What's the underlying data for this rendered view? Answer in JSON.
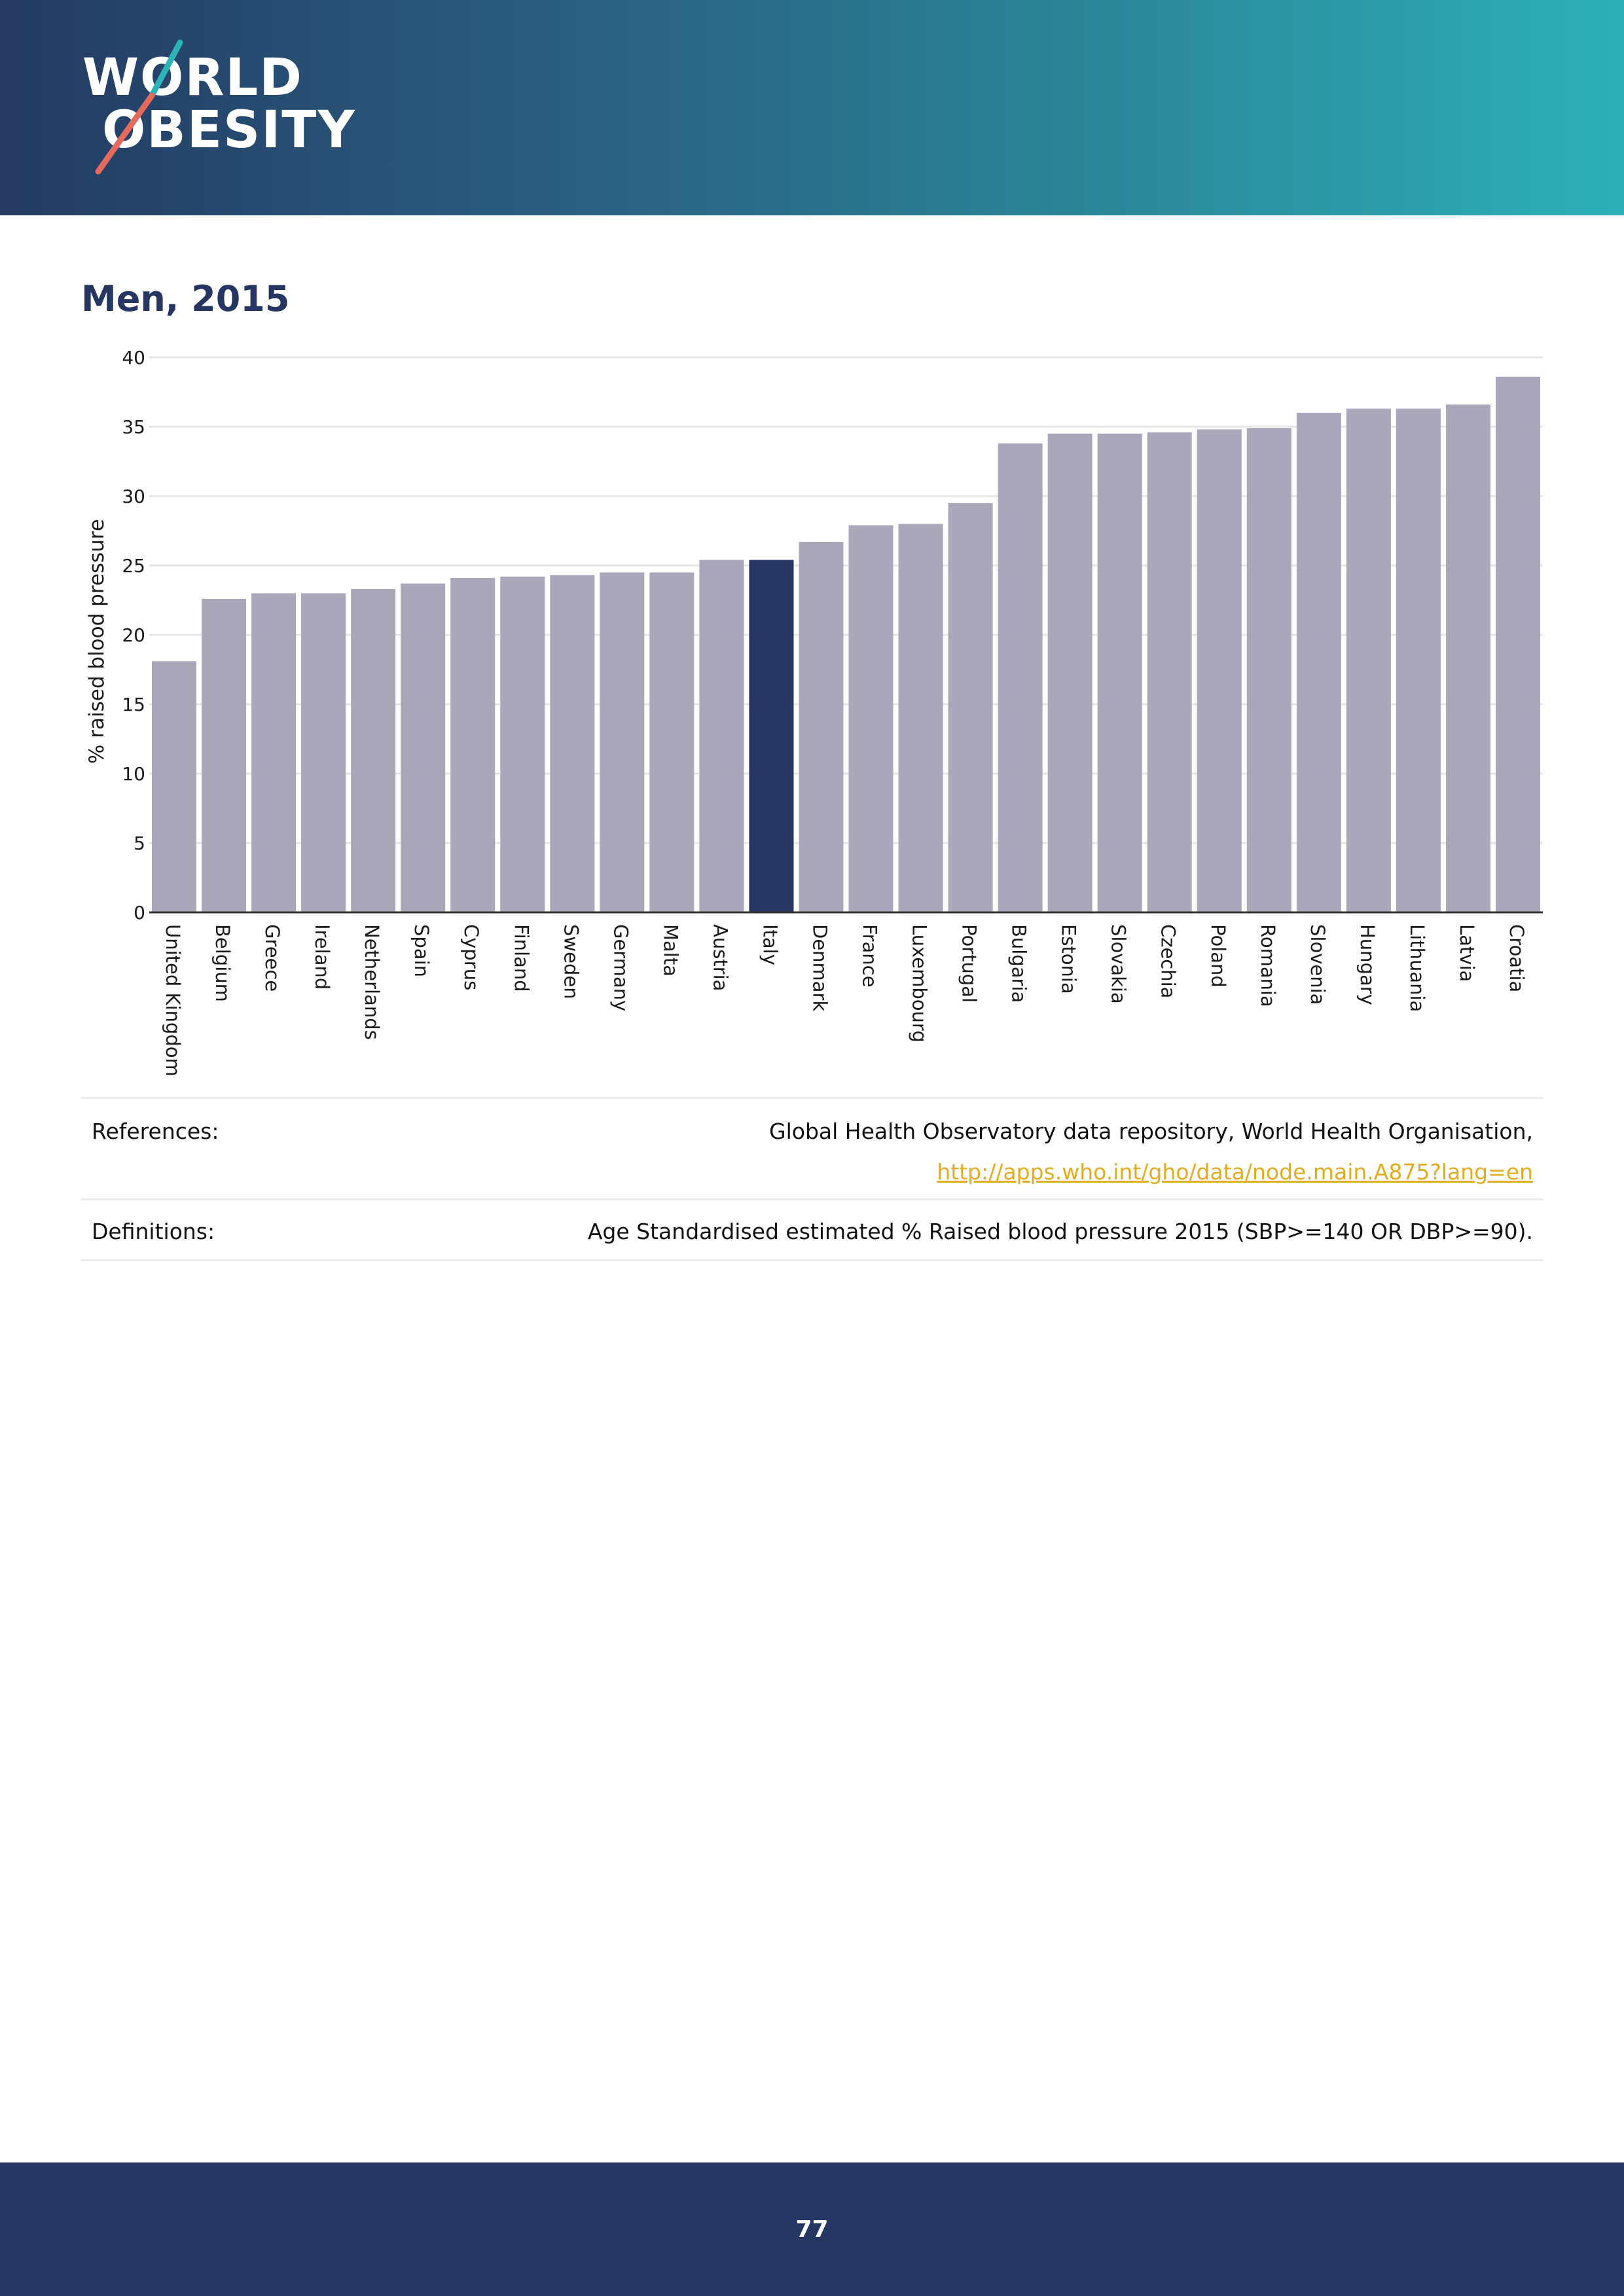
{
  "header": {
    "logo_line1": "WORLD",
    "logo_line2": "OBESITY",
    "colors": {
      "slash_teal": "#2bb4b8",
      "slash_red": "#e46a5b"
    }
  },
  "chart_title": "Men, 2015",
  "chart_data": {
    "type": "bar",
    "title": "Men, 2015",
    "ylabel": "% raised blood pressure",
    "xlabel": "",
    "ylim": [
      0,
      40
    ],
    "yticks": [
      0,
      5,
      10,
      15,
      20,
      25,
      30,
      35,
      40
    ],
    "grid": true,
    "categories": [
      "United Kingdom",
      "Belgium",
      "Greece",
      "Ireland",
      "Netherlands",
      "Spain",
      "Cyprus",
      "Finland",
      "Sweden",
      "Germany",
      "Malta",
      "Austria",
      "Italy",
      "Denmark",
      "France",
      "Luxembourg",
      "Portugal",
      "Bulgaria",
      "Estonia",
      "Slovakia",
      "Czechia",
      "Poland",
      "Romania",
      "Slovenia",
      "Hungary",
      "Lithuania",
      "Latvia",
      "Croatia"
    ],
    "values": [
      18.1,
      22.6,
      23.0,
      23.0,
      23.3,
      23.7,
      24.1,
      24.2,
      24.3,
      24.5,
      24.5,
      25.4,
      25.4,
      26.7,
      27.9,
      28.0,
      29.5,
      33.8,
      34.5,
      34.5,
      34.6,
      34.8,
      34.9,
      36.0,
      36.3,
      36.3,
      36.6,
      38.6
    ],
    "highlight": "Italy",
    "colors": {
      "bar": "#aba7bb",
      "highlight": "#243661",
      "grid": "#e6e6e6",
      "axis": "#333333"
    }
  },
  "references": {
    "label": "References:",
    "text": "Global Health Observatory data repository, World Health Organisation,",
    "link": "http://apps.who.int/gho/data/node.main.A875?lang=en"
  },
  "definitions": {
    "label": "Definitions:",
    "text": "Age Standardised estimated % Raised blood pressure 2015 (SBP>=140 OR DBP>=90)."
  },
  "footer": {
    "page_number": "77"
  }
}
